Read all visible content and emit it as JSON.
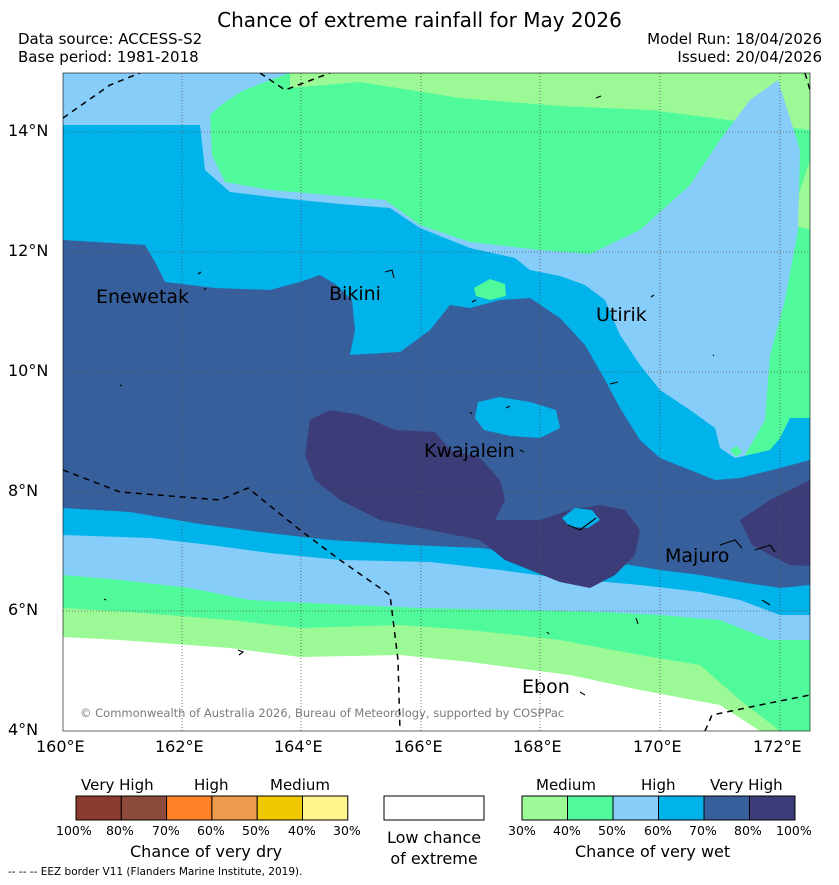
{
  "header": {
    "title": "Chance of extreme rainfall for May 2026",
    "data_source": "Data source: ACCESS-S2",
    "base_period": "Base period: 1981-2018",
    "model_run": "Model Run: 18/04/2026",
    "issued": "Issued: 20/04/2026"
  },
  "map": {
    "lat_labels": [
      "14°N",
      "12°N",
      "10°N",
      "8°N",
      "6°N",
      "4°N"
    ],
    "lon_labels": [
      "160°E",
      "162°E",
      "164°E",
      "166°E",
      "168°E",
      "170°E",
      "172°E"
    ],
    "places": [
      "Enewetak",
      "Bikini",
      "Utirik",
      "Kwajalein",
      "Majuro",
      "Ebon"
    ],
    "copyright": "© Commonwealth of Australia 2026, Bureau of Meteorology, supported by COSPPac"
  },
  "legend": {
    "dry": {
      "headers": [
        "Very High",
        "High",
        "Medium"
      ],
      "ticks": [
        "100%",
        "80%",
        "70%",
        "60%",
        "50%",
        "40%",
        "30%"
      ],
      "colors": [
        "#8b3a2e",
        "#8b4a3a",
        "#ff8228",
        "#eb9b4b",
        "#f0c800",
        "#fff58c"
      ],
      "caption": "Chance of very dry"
    },
    "neutral": {
      "line1": "Low chance",
      "line2": "of extreme"
    },
    "wet": {
      "headers": [
        "Medium",
        "High",
        "Very High"
      ],
      "ticks": [
        "30%",
        "40%",
        "50%",
        "60%",
        "70%",
        "80%",
        "100%"
      ],
      "colors": [
        "#9bfa96",
        "#50fa9b",
        "#87cdfa",
        "#00b4eb",
        "#375f9b",
        "#3c3c78"
      ],
      "caption": "Chance of very wet"
    },
    "eez_note": "-- -- -- EEZ border V11 (Flanders Marine Institute, 2019)."
  }
}
